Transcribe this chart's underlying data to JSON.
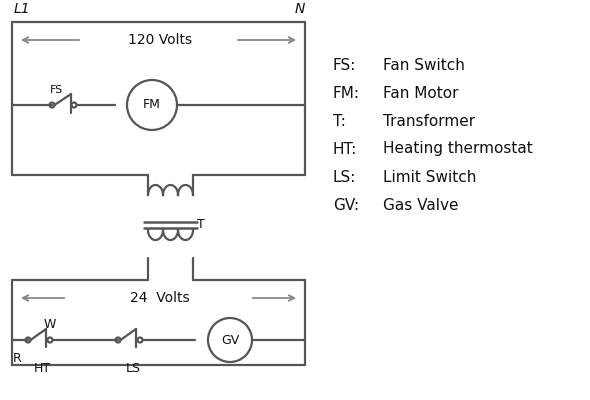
{
  "background": "#ffffff",
  "line_color": "#555555",
  "arrow_color": "#888888",
  "text_color": "#111111",
  "legend_items": [
    [
      "FS:",
      "Fan Switch"
    ],
    [
      "FM:",
      "Fan Motor"
    ],
    [
      "T:",
      "Transformer"
    ],
    [
      "HT:",
      "Heating thermostat"
    ],
    [
      "LS:",
      "Limit Switch"
    ],
    [
      "GV:",
      "Gas Valve"
    ]
  ],
  "L1_label": "L1",
  "N_label": "N",
  "volts_120": "120 Volts",
  "volts_24": "24  Volts",
  "T_label": "T",
  "R_label": "R",
  "W_label": "W",
  "HT_label": "HT",
  "LS_label": "LS",
  "FS_label": "FS",
  "FM_label": "FM",
  "GV_label": "GV"
}
